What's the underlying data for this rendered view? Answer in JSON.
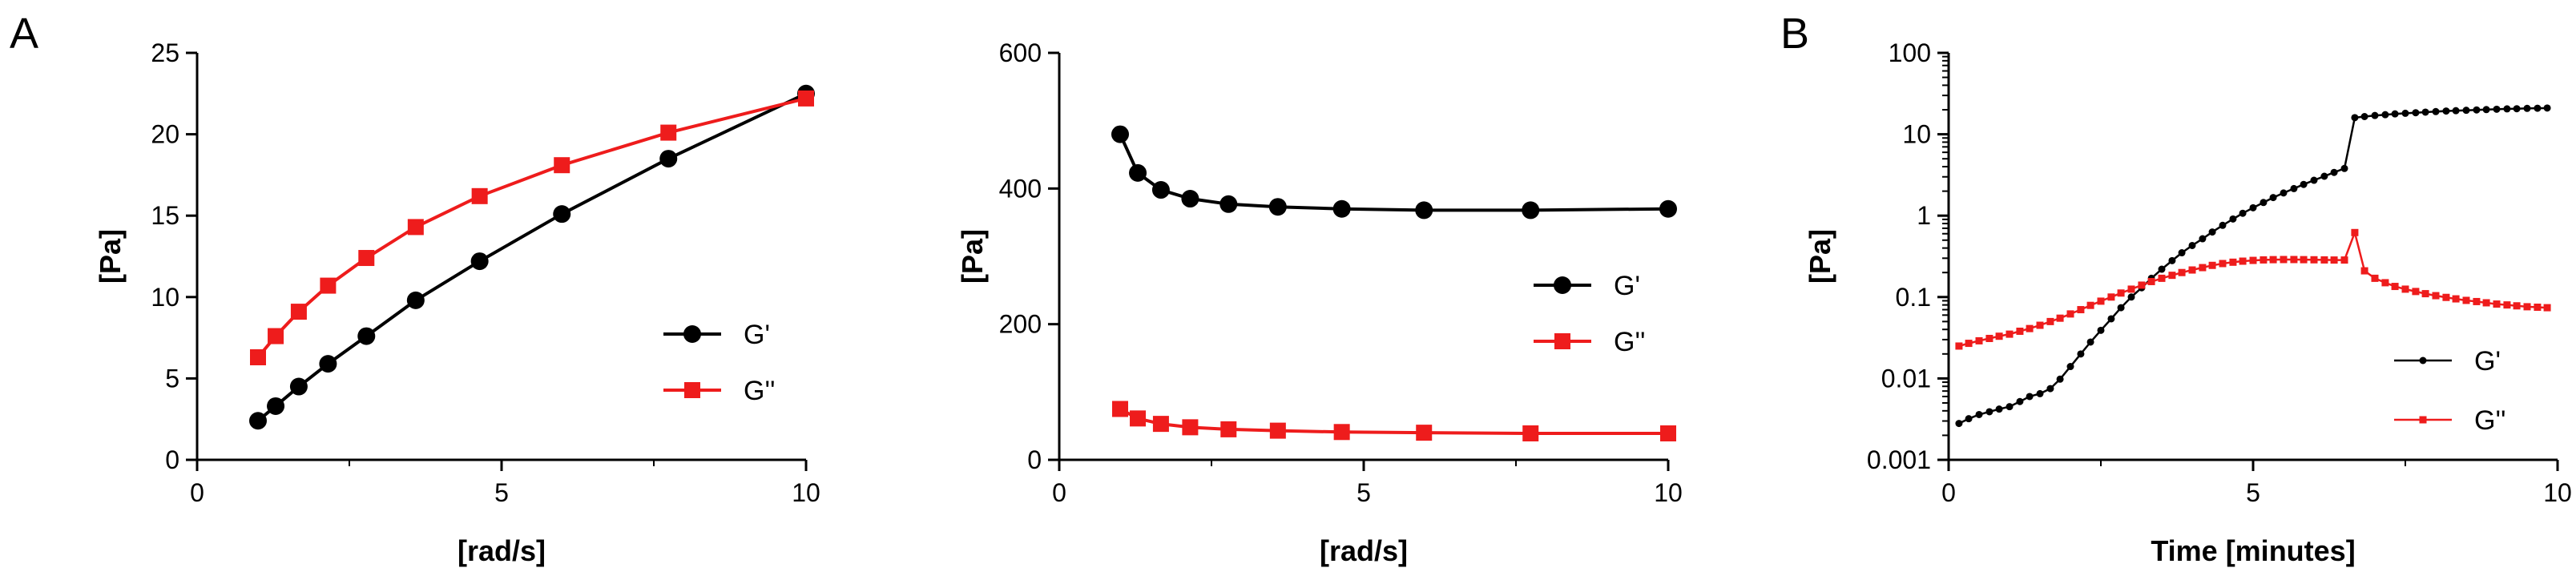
{
  "panel_letters": [
    "A",
    "B"
  ],
  "colors": {
    "g_prime": "#000000",
    "g_double_prime": "#ee1c1c",
    "axis": "#000000"
  },
  "chart_data": [
    {
      "type": "line",
      "xlabel": "[rad/s]",
      "ylabel": "[Pa]",
      "xlim": [
        0,
        10
      ],
      "ylim": [
        0,
        25
      ],
      "xscale": "linear",
      "yscale": "linear",
      "xticks": [
        0,
        5,
        10
      ],
      "xtick_labels": [
        "0",
        "5",
        "10"
      ],
      "yticks": [
        0,
        5,
        10,
        15,
        20,
        25
      ],
      "ytick_labels": [
        "0",
        "5",
        "10",
        "15",
        "20",
        "25"
      ],
      "legend": "center-right",
      "grid": false,
      "series": [
        {
          "name": "G'",
          "marker": "circle",
          "color": "#000000",
          "x": [
            1,
            1.29,
            1.67,
            2.15,
            2.78,
            3.59,
            4.64,
            5.99,
            7.74,
            10
          ],
          "y": [
            2.4,
            3.3,
            4.5,
            5.9,
            7.6,
            9.8,
            12.2,
            15.1,
            18.5,
            22.5
          ]
        },
        {
          "name": "G''",
          "marker": "square",
          "color": "#ee1c1c",
          "x": [
            1,
            1.29,
            1.67,
            2.15,
            2.78,
            3.59,
            4.64,
            5.99,
            7.74,
            10
          ],
          "y": [
            6.3,
            7.6,
            9.1,
            10.7,
            12.4,
            14.3,
            16.2,
            18.1,
            20.1,
            22.2
          ]
        }
      ]
    },
    {
      "type": "line",
      "xlabel": "[rad/s]",
      "ylabel": "[Pa]",
      "xlim": [
        0,
        10
      ],
      "ylim": [
        0,
        600
      ],
      "xscale": "linear",
      "yscale": "linear",
      "xticks": [
        0,
        5,
        10
      ],
      "xtick_labels": [
        "0",
        "5",
        "10"
      ],
      "yticks": [
        0,
        200,
        400,
        600
      ],
      "ytick_labels": [
        "0",
        "200",
        "400",
        "600"
      ],
      "legend": "center-right",
      "grid": false,
      "series": [
        {
          "name": "G'",
          "marker": "circle",
          "color": "#000000",
          "x": [
            1,
            1.29,
            1.67,
            2.15,
            2.78,
            3.59,
            4.64,
            5.99,
            7.74,
            10
          ],
          "y": [
            480,
            423,
            398,
            385,
            377,
            373,
            370,
            368,
            368,
            370
          ]
        },
        {
          "name": "G''",
          "marker": "square",
          "color": "#ee1c1c",
          "x": [
            1,
            1.29,
            1.67,
            2.15,
            2.78,
            3.59,
            4.64,
            5.99,
            7.74,
            10
          ],
          "y": [
            75,
            61,
            53,
            48,
            45,
            43,
            41,
            40,
            39,
            39
          ]
        }
      ]
    },
    {
      "type": "line",
      "xlabel": "Time [minutes]",
      "ylabel": "[Pa]",
      "xlim": [
        0,
        10
      ],
      "ylim": [
        0.001,
        100
      ],
      "xscale": "linear",
      "yscale": "log",
      "xticks": [
        0,
        5,
        10
      ],
      "xtick_labels": [
        "0",
        "5",
        "10"
      ],
      "yticks": [
        0.001,
        0.01,
        0.1,
        1,
        10,
        100
      ],
      "ytick_labels": [
        "0.001",
        "0.01",
        "0.1",
        "1",
        "10",
        "100"
      ],
      "legend": "bottom-right",
      "grid": false,
      "series": [
        {
          "name": "G'",
          "marker": "small-circle",
          "color": "#000000",
          "x": [
            0.17,
            0.33,
            0.5,
            0.67,
            0.83,
            1.0,
            1.17,
            1.33,
            1.5,
            1.67,
            1.83,
            2.0,
            2.17,
            2.33,
            2.5,
            2.67,
            2.83,
            3.0,
            3.17,
            3.33,
            3.5,
            3.67,
            3.83,
            4.0,
            4.17,
            4.33,
            4.5,
            4.67,
            4.83,
            5.0,
            5.17,
            5.33,
            5.5,
            5.67,
            5.83,
            6.0,
            6.17,
            6.33,
            6.5,
            6.67,
            6.83,
            7.0,
            7.17,
            7.33,
            7.5,
            7.67,
            7.83,
            8.0,
            8.17,
            8.33,
            8.5,
            8.67,
            8.83,
            9.0,
            9.17,
            9.33,
            9.5,
            9.67,
            9.83
          ],
          "y": [
            0.0028,
            0.0032,
            0.0036,
            0.0039,
            0.0042,
            0.0045,
            0.0052,
            0.006,
            0.0065,
            0.0075,
            0.0098,
            0.014,
            0.02,
            0.028,
            0.039,
            0.054,
            0.074,
            0.1,
            0.13,
            0.17,
            0.22,
            0.28,
            0.35,
            0.43,
            0.52,
            0.63,
            0.76,
            0.91,
            1.07,
            1.25,
            1.45,
            1.67,
            1.9,
            2.15,
            2.42,
            2.72,
            3.05,
            3.4,
            3.8,
            16.0,
            16.5,
            17.0,
            17.4,
            17.8,
            18.1,
            18.4,
            18.7,
            19.0,
            19.3,
            19.5,
            19.7,
            19.9,
            20.1,
            20.3,
            20.5,
            20.6,
            20.8,
            20.9,
            21.0
          ]
        },
        {
          "name": "G''",
          "marker": "small-square",
          "color": "#ee1c1c",
          "x": [
            0.17,
            0.33,
            0.5,
            0.67,
            0.83,
            1.0,
            1.17,
            1.33,
            1.5,
            1.67,
            1.83,
            2.0,
            2.17,
            2.33,
            2.5,
            2.67,
            2.83,
            3.0,
            3.17,
            3.33,
            3.5,
            3.67,
            3.83,
            4.0,
            4.17,
            4.33,
            4.5,
            4.67,
            4.83,
            5.0,
            5.17,
            5.33,
            5.5,
            5.67,
            5.83,
            6.0,
            6.17,
            6.33,
            6.5,
            6.67,
            6.83,
            7.0,
            7.17,
            7.33,
            7.5,
            7.67,
            7.83,
            8.0,
            8.17,
            8.33,
            8.5,
            8.67,
            8.83,
            9.0,
            9.17,
            9.33,
            9.5,
            9.67,
            9.83
          ],
          "y": [
            0.025,
            0.027,
            0.029,
            0.031,
            0.033,
            0.035,
            0.038,
            0.041,
            0.045,
            0.05,
            0.055,
            0.062,
            0.07,
            0.079,
            0.089,
            0.1,
            0.112,
            0.125,
            0.14,
            0.155,
            0.17,
            0.185,
            0.2,
            0.215,
            0.23,
            0.245,
            0.258,
            0.268,
            0.276,
            0.282,
            0.286,
            0.288,
            0.289,
            0.289,
            0.288,
            0.287,
            0.286,
            0.285,
            0.285,
            0.62,
            0.21,
            0.17,
            0.15,
            0.135,
            0.125,
            0.117,
            0.11,
            0.104,
            0.099,
            0.095,
            0.091,
            0.088,
            0.085,
            0.082,
            0.08,
            0.078,
            0.076,
            0.075,
            0.074
          ]
        }
      ]
    }
  ]
}
